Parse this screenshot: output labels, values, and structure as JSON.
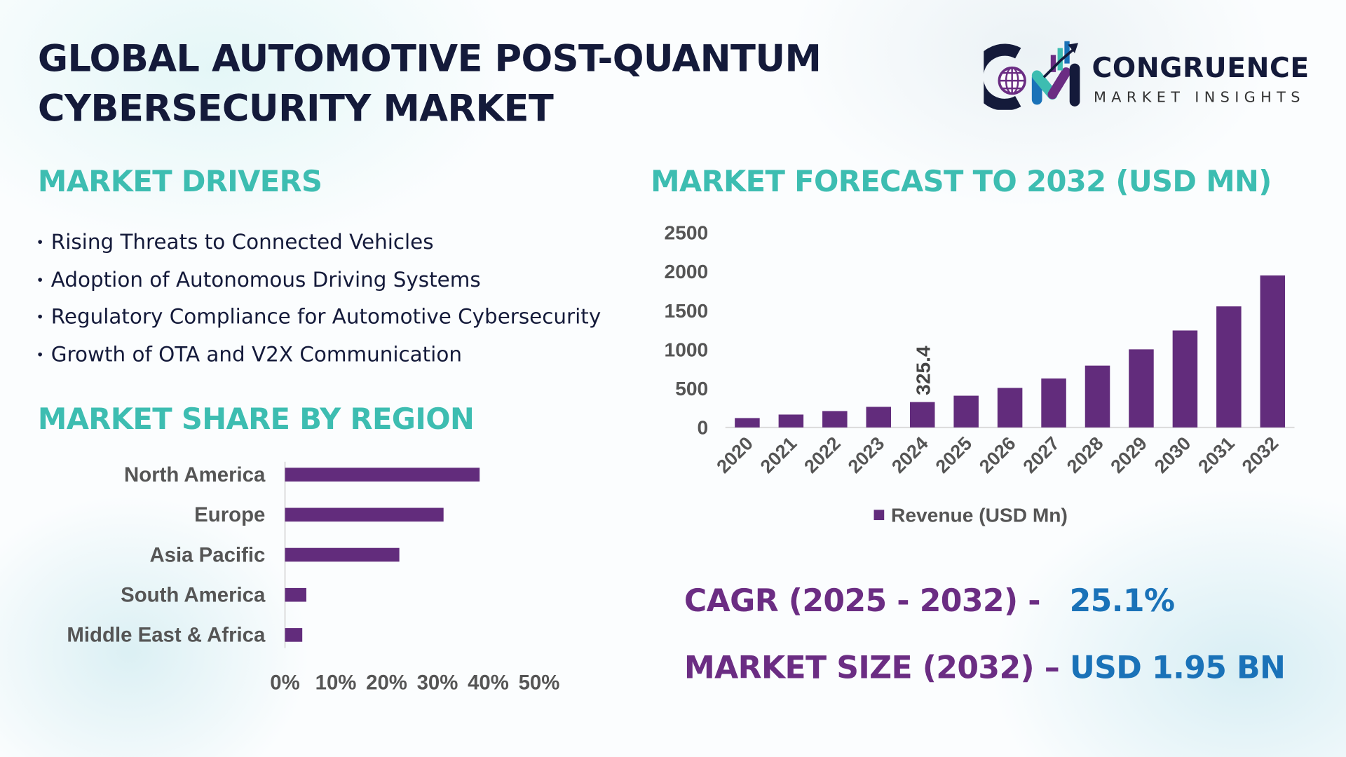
{
  "title": "GLOBAL AUTOMOTIVE POST-QUANTUM CYBERSECURITY MARKET",
  "logo": {
    "name": "CONGRUENCE",
    "tagline": "MARKET INSIGHTS"
  },
  "drivers": {
    "heading": "MARKET DRIVERS",
    "items": [
      "Rising Threats to Connected Vehicles",
      "Adoption of Autonomous Driving Systems",
      "Regulatory Compliance for Automotive Cybersecurity",
      "Growth of OTA and V2X Communication"
    ]
  },
  "region_heading": "MARKET SHARE BY REGION",
  "forecast_heading": "MARKET FORECAST TO 2032 (USD MN)",
  "stats": {
    "cagr_label": "CAGR (2025 - 2032) -",
    "cagr_value": "25.1%",
    "size_label": "MARKET SIZE (2032) –",
    "size_value": "USD 1.95 BN"
  },
  "colors": {
    "teal": "#3dbdb1",
    "navy": "#141a3a",
    "bar": "#622c7c",
    "purple_text": "#6b2d83",
    "blue_text": "#1a72b8",
    "axis_text": "#555555"
  },
  "chart_data": [
    {
      "type": "bar",
      "orientation": "vertical",
      "title": "MARKET FORECAST TO 2032 (USD MN)",
      "categories": [
        "2020",
        "2021",
        "2022",
        "2023",
        "2024",
        "2025",
        "2026",
        "2027",
        "2028",
        "2029",
        "2030",
        "2031",
        "2032"
      ],
      "series": [
        {
          "name": "Revenue (USD Mn)",
          "values": [
            120,
            165,
            210,
            264,
            325.4,
            407,
            507,
            628,
            793,
            1002,
            1244,
            1553,
            1950
          ]
        }
      ],
      "data_labels": {
        "2024": "325.4"
      },
      "yticks": [
        "0",
        "500",
        "1000",
        "1500",
        "2000",
        "2500"
      ],
      "ylim": [
        0,
        2500
      ],
      "grid": false,
      "legend": "bottom"
    },
    {
      "type": "bar",
      "orientation": "horizontal",
      "title": "MARKET SHARE BY REGION",
      "categories": [
        "North America",
        "Europe",
        "Asia Pacific",
        "South America",
        "Middle East & Africa"
      ],
      "values": [
        38.3,
        31.2,
        22.5,
        4.2,
        3.4
      ],
      "xticks": [
        "0%",
        "10%",
        "20%",
        "30%",
        "40%",
        "50%"
      ],
      "xlim": [
        0,
        50
      ],
      "grid": false
    }
  ]
}
